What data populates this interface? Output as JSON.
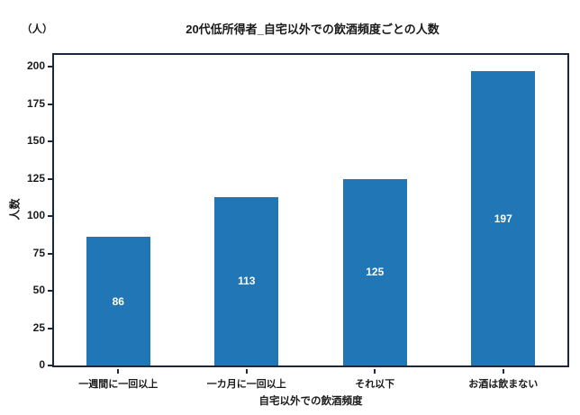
{
  "chart_data": {
    "type": "bar",
    "title": "20代低所得者_自宅以外での飲酒頻度ごとの人数",
    "unit_label": "（人）",
    "ylabel": "人数",
    "xlabel": "自宅以外での飲酒頻度",
    "categories": [
      "一週間に一回以上",
      "一カ月に一回以上",
      "それ以下",
      "お酒は飲まない"
    ],
    "values": [
      86,
      113,
      125,
      197
    ],
    "value_labels": [
      "86",
      "113",
      "125",
      "197"
    ],
    "yticks": [
      0,
      25,
      50,
      75,
      100,
      125,
      150,
      175,
      200
    ],
    "ylim": [
      0,
      208
    ],
    "grid": false,
    "legend_position": "none",
    "colors": {
      "bar": "#2177b5",
      "value_label": "#ffffff",
      "frame": "#1b2940",
      "text": "#1a1a1a",
      "background": "#ffffff"
    }
  }
}
